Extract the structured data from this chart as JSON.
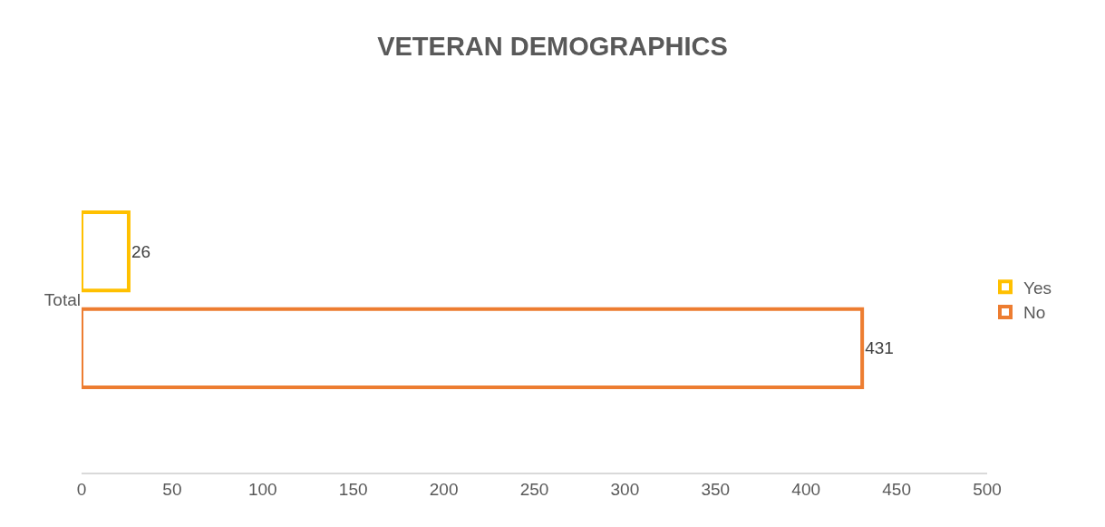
{
  "chart_data": {
    "type": "bar",
    "title": "VETERAN DEMOGRAPHICS",
    "orientation": "horizontal",
    "categories": [
      "Total"
    ],
    "series": [
      {
        "name": "Yes",
        "color": "#ffc000",
        "values": [
          26
        ]
      },
      {
        "name": "No",
        "color": "#ed7d31",
        "values": [
          431
        ]
      }
    ],
    "xlim": [
      0,
      500
    ],
    "xticks": [
      0,
      50,
      100,
      150,
      200,
      250,
      300,
      350,
      400,
      450,
      500
    ],
    "data_labels": true,
    "legend": "right"
  }
}
